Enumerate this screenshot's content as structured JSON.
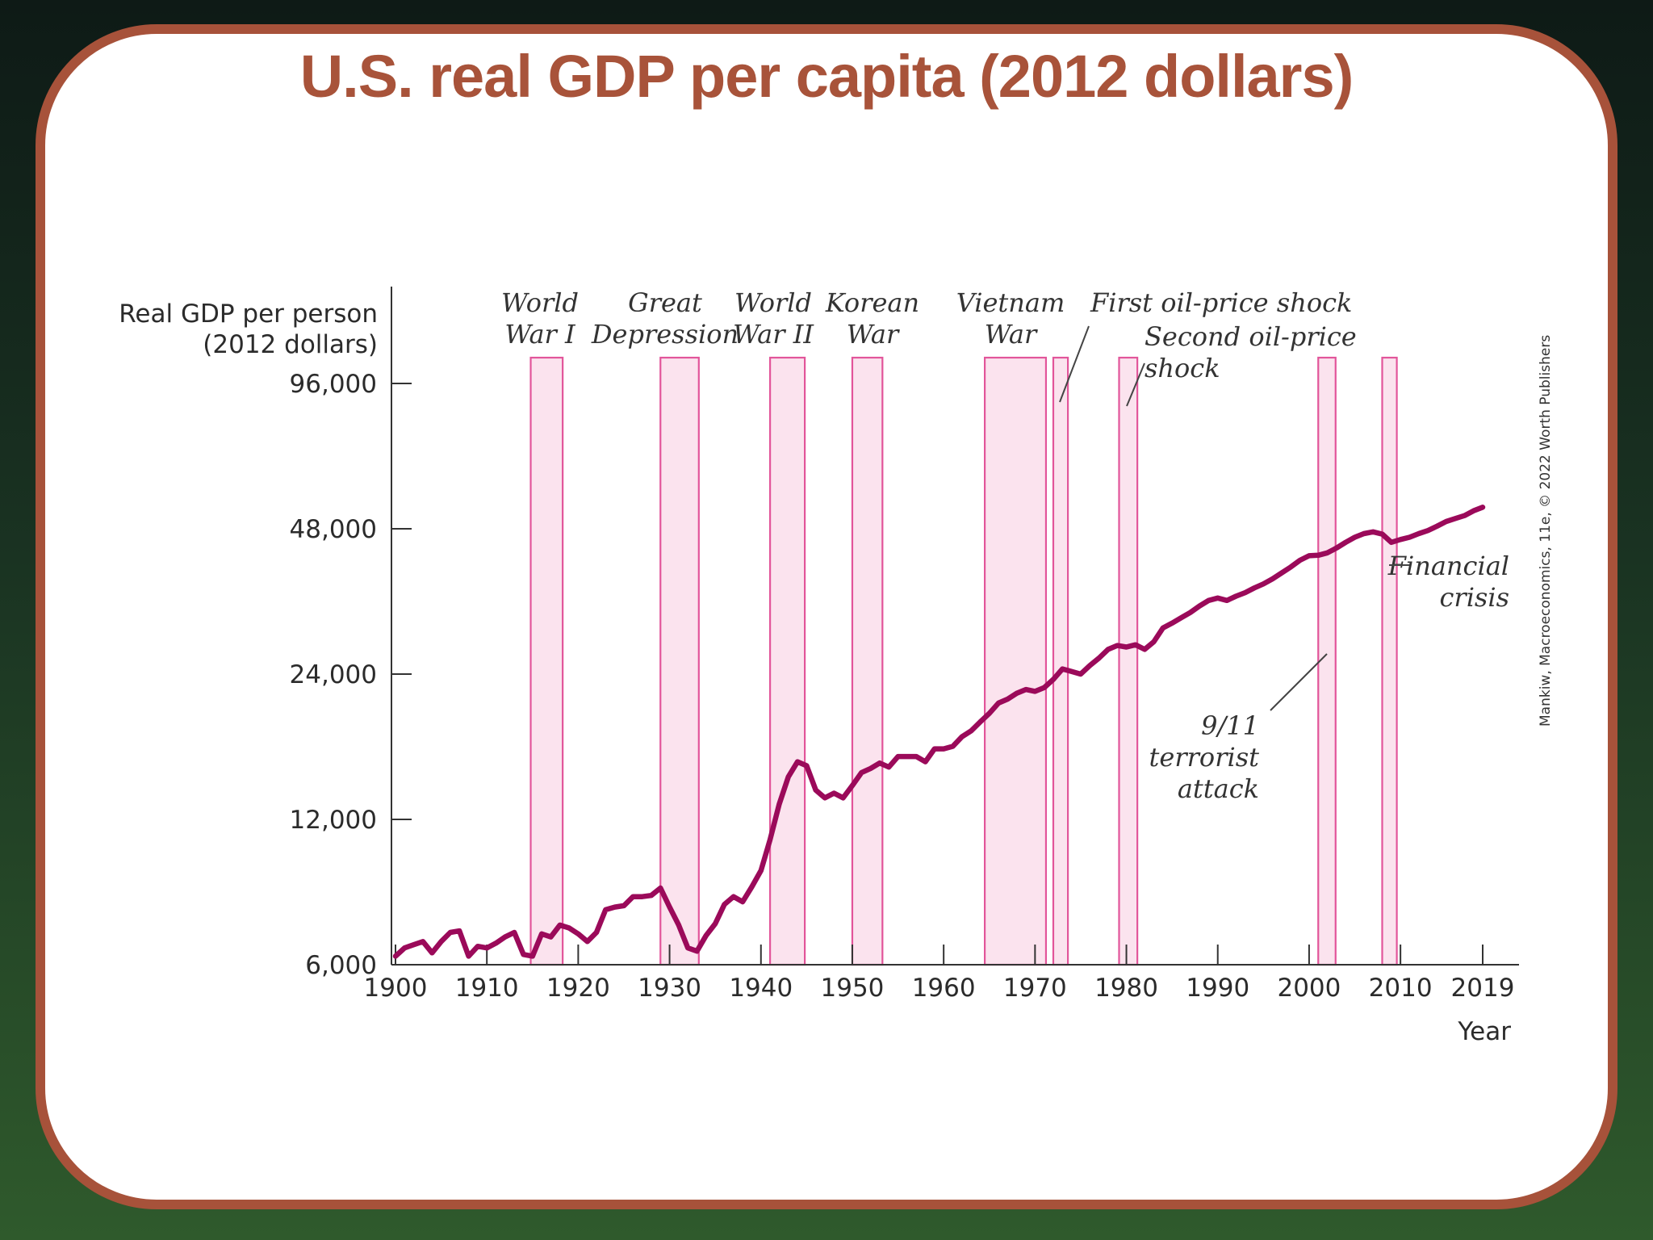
{
  "slide": {
    "title": "U.S. real GDP per capita (2012 dollars)"
  },
  "colors": {
    "accent": "#a8533a",
    "series": "#9b0a5a",
    "band_fill": "#fbe3ee",
    "band_stroke": "#e2559a"
  },
  "chart_data": {
    "type": "line",
    "title": "",
    "ylabel": [
      "Real GDP per person",
      "(2012 dollars)"
    ],
    "xlabel": "Year",
    "y_scale": "log",
    "ylim": [
      6000,
      96000
    ],
    "xlim": [
      1900,
      2019
    ],
    "y_ticks": [
      6000,
      12000,
      24000,
      48000,
      96000
    ],
    "y_tick_labels": [
      "6,000",
      "12,000",
      "24,000",
      "48,000",
      "96,000"
    ],
    "x_ticks": [
      1900,
      1910,
      1920,
      1930,
      1940,
      1950,
      1960,
      1970,
      1980,
      1990,
      2000,
      2010,
      2019
    ],
    "x_tick_labels": [
      "1900",
      "1910",
      "1920",
      "1930",
      "1940",
      "1950",
      "1960",
      "1970",
      "1980",
      "1990",
      "2000",
      "2010",
      "2019"
    ],
    "series": [
      {
        "x": [
          1900,
          1901,
          1902,
          1903,
          1904,
          1905,
          1906,
          1907,
          1908,
          1909,
          1910,
          1911,
          1912,
          1913,
          1914,
          1915,
          1916,
          1917,
          1918,
          1919,
          1920,
          1921,
          1922,
          1923,
          1924,
          1925,
          1926,
          1927,
          1928,
          1929,
          1930,
          1931,
          1932,
          1933,
          1934,
          1935,
          1936,
          1937,
          1938,
          1939,
          1940,
          1941,
          1942,
          1943,
          1944,
          1945,
          1946,
          1947,
          1948,
          1949,
          1950,
          1951,
          1952,
          1953,
          1954,
          1955,
          1956,
          1957,
          1958,
          1959,
          1960,
          1961,
          1962,
          1963,
          1964,
          1965,
          1966,
          1967,
          1968,
          1969,
          1970,
          1971,
          1972,
          1973,
          1974,
          1975,
          1976,
          1977,
          1978,
          1979,
          1980,
          1981,
          1982,
          1983,
          1984,
          1985,
          1986,
          1987,
          1988,
          1989,
          1990,
          1991,
          1992,
          1993,
          1994,
          1995,
          1996,
          1997,
          1998,
          1999,
          2000,
          2001,
          2002,
          2003,
          2004,
          2005,
          2006,
          2007,
          2008,
          2009,
          2010,
          2011,
          2012,
          2013,
          2014,
          2015,
          2016,
          2017,
          2018,
          2019
        ],
        "values": [
          6250,
          6500,
          6600,
          6700,
          6350,
          6700,
          7000,
          7050,
          6250,
          6550,
          6500,
          6650,
          6850,
          7000,
          6300,
          6250,
          6950,
          6850,
          7250,
          7150,
          6950,
          6700,
          7000,
          7800,
          7900,
          7950,
          8300,
          8300,
          8350,
          8650,
          7900,
          7250,
          6500,
          6400,
          6900,
          7300,
          8000,
          8300,
          8100,
          8700,
          9400,
          10900,
          12900,
          14700,
          15800,
          15500,
          13800,
          13300,
          13600,
          13300,
          14100,
          15000,
          15300,
          15700,
          15400,
          16200,
          16200,
          16200,
          15800,
          16800,
          16800,
          17000,
          17800,
          18300,
          19100,
          19900,
          20900,
          21300,
          21900,
          22300,
          22100,
          22500,
          23400,
          24600,
          24300,
          24000,
          25000,
          25900,
          27000,
          27500,
          27300,
          27600,
          27000,
          28000,
          29900,
          30600,
          31400,
          32200,
          33200,
          34100,
          34500,
          34100,
          34800,
          35400,
          36200,
          36900,
          37800,
          38900,
          40000,
          41300,
          42200,
          42300,
          42800,
          43800,
          45000,
          46100,
          46900,
          47300,
          46800,
          45000,
          45600,
          46100,
          46900,
          47600,
          48600,
          49700,
          50400,
          51100,
          52300,
          53200
        ]
      }
    ],
    "bands": [
      {
        "name": "World War I",
        "start": 1914.8,
        "end": 1918.3
      },
      {
        "name": "Great Depression",
        "start": 1929.0,
        "end": 1933.2
      },
      {
        "name": "World War II",
        "start": 1941.0,
        "end": 1944.8
      },
      {
        "name": "Korean War",
        "start": 1950.0,
        "end": 1953.3
      },
      {
        "name": "Vietnam War",
        "start": 1964.5,
        "end": 1971.2
      },
      {
        "name": "First oil-price shock",
        "start": 1972.0,
        "end": 1973.6
      },
      {
        "name": "Second oil-price shock",
        "start": 1979.2,
        "end": 1981.2
      },
      {
        "name": "9/11 terrorist attack",
        "start": 2001.0,
        "end": 2002.9
      },
      {
        "name": "Financial crisis",
        "start": 2008.0,
        "end": 2009.6
      }
    ],
    "annotations": [
      {
        "lines": [
          "World",
          "War I"
        ]
      },
      {
        "lines": [
          "Great",
          "Depression"
        ]
      },
      {
        "lines": [
          "World",
          "War II"
        ]
      },
      {
        "lines": [
          "Korean",
          "War"
        ]
      },
      {
        "lines": [
          "Vietnam",
          "War"
        ]
      },
      {
        "lines": [
          "First oil-price shock"
        ]
      },
      {
        "lines": [
          "Second oil-price",
          "shock"
        ]
      },
      {
        "lines": [
          "9/11",
          "terrorist",
          "attack"
        ]
      },
      {
        "lines": [
          "Financial",
          "crisis"
        ]
      }
    ],
    "credit": "Mankiw, Macroeconomics, 11e, © 2022 Worth Publishers"
  }
}
